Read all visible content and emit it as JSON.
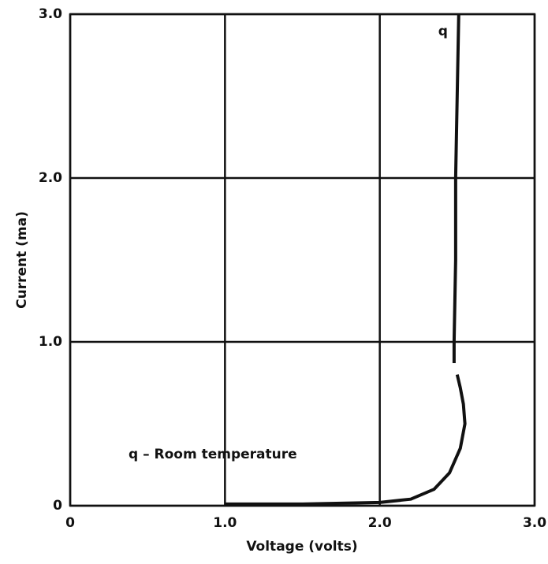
{
  "chart_data": {
    "type": "line",
    "xlabel": "Voltage (volts)",
    "ylabel": "Current (ma)",
    "annotation": "q – Room temperature",
    "xlim": [
      0,
      3
    ],
    "ylim": [
      0,
      3
    ],
    "xticks": [
      0,
      {
        "value": 1,
        "label": "1.0"
      },
      {
        "value": 2,
        "label": "2.0"
      },
      {
        "value": 3,
        "label": "3.0"
      }
    ],
    "yticks": [
      0,
      {
        "value": 1,
        "label": "1.0"
      },
      {
        "value": 2,
        "label": "2.0"
      },
      {
        "value": 3,
        "label": "3.0"
      }
    ],
    "grid": true,
    "x": [
      1.0,
      1.5,
      2.0,
      2.2,
      2.35,
      2.45,
      2.52,
      2.55,
      2.54,
      2.52,
      2.5,
      null,
      2.48,
      2.48,
      2.49,
      2.49,
      2.5,
      2.51
    ],
    "series": [
      {
        "name": "q",
        "color": "#111111",
        "values": [
          0.01,
          0.01,
          0.02,
          0.04,
          0.1,
          0.2,
          0.35,
          0.5,
          0.62,
          0.72,
          0.8,
          null,
          0.87,
          1.0,
          1.5,
          2.0,
          2.5,
          3.0
        ]
      }
    ]
  }
}
